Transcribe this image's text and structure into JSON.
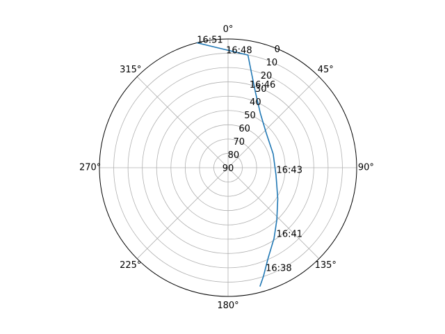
{
  "chart_data": {
    "type": "line",
    "projection": "polar",
    "theta_zero_location": "N",
    "theta_direction": "clockwise",
    "theta_tick_labels": [
      "0°",
      "45°",
      "90°",
      "135°",
      "180°",
      "225°",
      "270°",
      "315°"
    ],
    "r_tick_labels": [
      "0",
      "10",
      "20",
      "30",
      "40",
      "50",
      "60",
      "70",
      "80",
      "90"
    ],
    "r_axis_inverted": true,
    "rlim": [
      90,
      0
    ],
    "grid": true,
    "series": [
      {
        "color": "#1f77b4",
        "points": [
          {
            "azimuth_deg": 165,
            "elevation_deg": 4
          },
          {
            "azimuth_deg": 162,
            "elevation_deg": 10
          },
          {
            "azimuth_deg": 156,
            "elevation_deg": 21
          },
          {
            "azimuth_deg": 147,
            "elevation_deg": 31
          },
          {
            "azimuth_deg": 137,
            "elevation_deg": 40
          },
          {
            "azimuth_deg": 122,
            "elevation_deg": 49
          },
          {
            "azimuth_deg": 99,
            "elevation_deg": 56
          },
          {
            "azimuth_deg": 73,
            "elevation_deg": 57
          },
          {
            "azimuth_deg": 48,
            "elevation_deg": 54
          },
          {
            "azimuth_deg": 31,
            "elevation_deg": 46
          },
          {
            "azimuth_deg": 20,
            "elevation_deg": 34
          },
          {
            "azimuth_deg": 14,
            "elevation_deg": 22
          },
          {
            "azimuth_deg": 10,
            "elevation_deg": 10
          },
          {
            "azimuth_deg": -14,
            "elevation_deg": 0
          }
        ]
      }
    ],
    "annotations": [
      {
        "text": "16:51",
        "azimuth_deg": -14,
        "elevation_deg": 0
      },
      {
        "text": "16:48",
        "azimuth_deg": -1,
        "elevation_deg": 10
      },
      {
        "text": "16:46",
        "azimuth_deg": 15,
        "elevation_deg": 32
      },
      {
        "text": "16:43",
        "azimuth_deg": 96,
        "elevation_deg": 56
      },
      {
        "text": "16:41",
        "azimuth_deg": 145,
        "elevation_deg": 31
      },
      {
        "text": "16:38",
        "azimuth_deg": 160,
        "elevation_deg": 13
      }
    ]
  }
}
